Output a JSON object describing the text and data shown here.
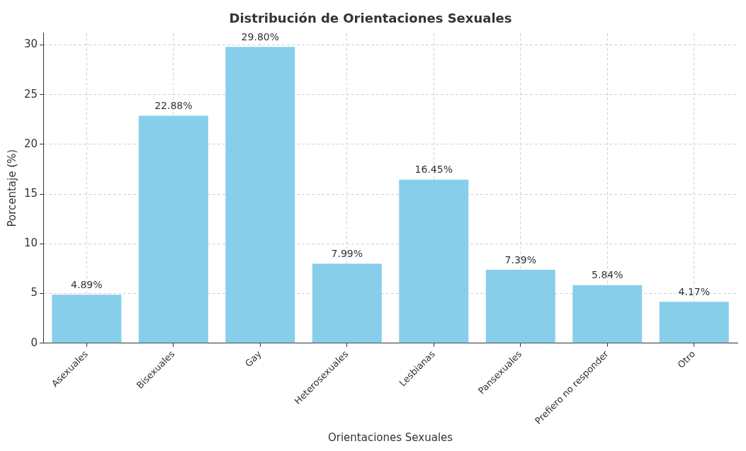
{
  "chart_data": {
    "type": "bar",
    "title": "Distribución de Orientaciones Sexuales",
    "xlabel": "Orientaciones Sexuales",
    "ylabel": "Porcentaje (%)",
    "categories": [
      "Asexuales",
      "Bisexuales",
      "Gay",
      "Heterosexuales",
      "Lesbianas",
      "Pansexuales",
      "Prefiero no responder",
      "Otro"
    ],
    "values": [
      4.89,
      22.88,
      29.8,
      7.99,
      16.45,
      7.39,
      5.84,
      4.17
    ],
    "value_labels": [
      "4.89%",
      "22.88%",
      "29.80%",
      "7.99%",
      "16.45%",
      "7.39%",
      "5.84%",
      "4.17%"
    ],
    "color": "#87ceeb",
    "ylim": [
      0,
      31.2
    ],
    "yticks": [
      0,
      5,
      10,
      15,
      20,
      25,
      30
    ],
    "grid": true
  }
}
